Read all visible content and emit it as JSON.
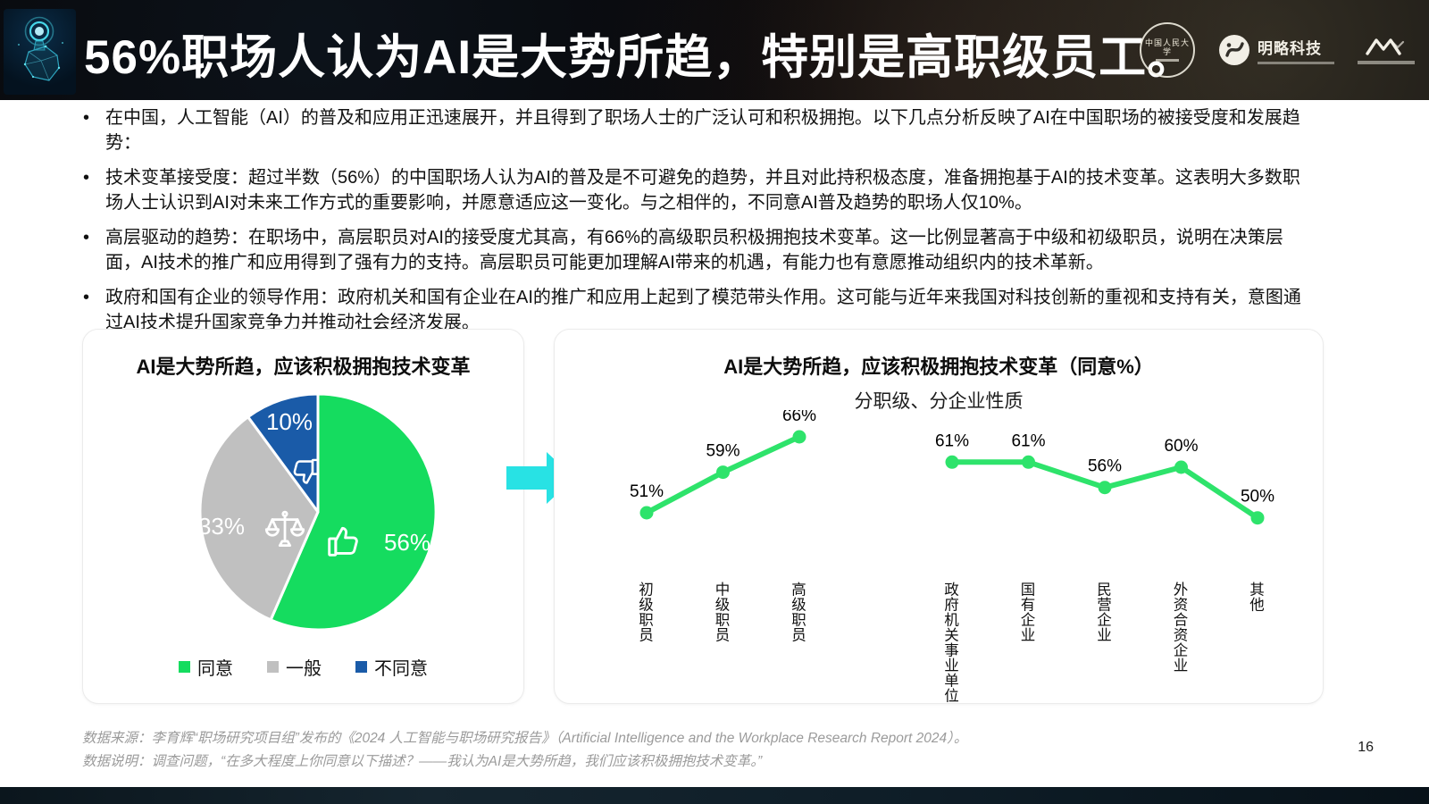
{
  "slide": {
    "header": {
      "title": "56%职场人认为AI是大势所趋，特别是高职级员工。",
      "logos": {
        "university": "中国人民大学",
        "company": "明略科技"
      }
    },
    "bullets": [
      "在中国，人工智能（AI）的普及和应用正迅速展开，并且得到了职场人士的广泛认可和积极拥抱。以下几点分析反映了AI在中国职场的被接受度和发展趋势：",
      "技术变革接受度：超过半数（56%）的中国职场人认为AI的普及是不可避免的趋势，并且对此持积极态度，准备拥抱基于AI的技术变革。这表明大多数职场人士认识到AI对未来工作方式的重要影响，并愿意适应这一变化。与之相伴的，不同意AI普及趋势的职场人仅10%。",
      "高层驱动的趋势：在职场中，高层职员对AI的接受度尤其高，有66%的高级职员积极拥抱技术变革。这一比例显著高于中级和初级职员，说明在决策层面，AI技术的推广和应用得到了强有力的支持。高层职员可能更加理解AI带来的机遇，有能力也有意愿推动组织内的技术革新。",
      "政府和国有企业的领导作用：政府机关和国有企业在AI的推广和应用上起到了模范带头作用。这可能与近年来我国对科技创新的重视和支持有关，意图通过AI技术提升国家竞争力并推动社会经济发展。"
    ],
    "footer": {
      "source": "数据来源：李育辉“职场研究项目组”发布的《2024 人工智能与职场研究报告》（Artificial Intelligence and the Workplace Research Report 2024）。",
      "note": "数据说明：调查问题，“在多大程度上你同意以下描述？——我认为AI是大势所趋，我们应该积极拥抱技术变革。”"
    },
    "page_number": "16"
  },
  "chart_data": [
    {
      "type": "pie",
      "title": "AI是大势所趋，应该积极拥抱技术变革",
      "labels": [
        "同意",
        "一般",
        "不同意"
      ],
      "slice_names": [
        "agree",
        "neutral",
        "disagree"
      ],
      "values": [
        56,
        33,
        10
      ],
      "value_labels": [
        "56%",
        "33%",
        "10%"
      ],
      "colors": [
        "#15DC5F",
        "#C0C0C0",
        "#1A5BA8"
      ],
      "slice_icons": [
        "thumbs-up-icon",
        "scales-icon",
        "thumbs-down-icon"
      ],
      "label_color": "#ffffff",
      "legend_position": "bottom",
      "start_angle_deg": 0,
      "direction": "clockwise"
    },
    {
      "type": "line",
      "title": "AI是大势所趋，应该积极拥抱技术变革（同意%）",
      "subtitle": "分职级、分企业性质",
      "categories": [
        "初级职员",
        "中级职员",
        "高级职员",
        null,
        "政府机关事业单位",
        "国有企业",
        "民营企业",
        "外资合资企业",
        "其他"
      ],
      "values": [
        51,
        59,
        66,
        null,
        61,
        61,
        56,
        60,
        50
      ],
      "value_labels": [
        "51%",
        "59%",
        "66%",
        null,
        "61%",
        "61%",
        "56%",
        "60%",
        "50%"
      ],
      "color": "#2EE36B",
      "data_labels": true,
      "axes_hidden": true,
      "ylim": [
        45,
        70
      ]
    }
  ],
  "accent": {
    "arrow": "#28E2E4"
  }
}
